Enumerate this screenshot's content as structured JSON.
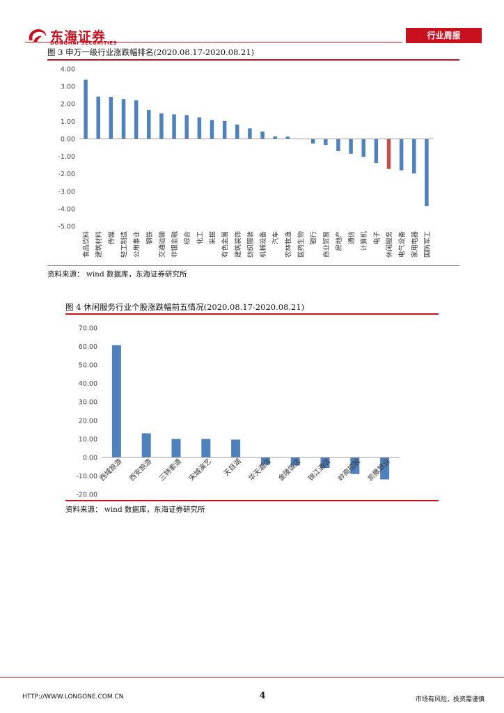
{
  "header": {
    "logo_cn": "东海证券",
    "logo_en": "DONGHAI SECURITIES",
    "tag": "行业周报"
  },
  "figure3": {
    "title": "图 3   申万一级行业涨跌幅排名(2020.08.17-2020.08.21)",
    "source": "资料来源：  wind 数据库，东海证券研究所",
    "chart_data": {
      "type": "bar",
      "categories": [
        "食品饮料",
        "建筑材料",
        "传媒",
        "轻工制造",
        "公用事业",
        "钢铁",
        "交通运输",
        "非银金融",
        "综合",
        "化工",
        "采掘",
        "有色金属",
        "建筑装饰",
        "纺织服装",
        "机械设备",
        "汽车",
        "农林牧渔",
        "医药生物",
        "银行",
        "商业贸易",
        "房地产",
        "通信",
        "计算机",
        "电子",
        "休闲服务",
        "电气设备",
        "家用电器",
        "国防军工"
      ],
      "values": [
        3.38,
        2.42,
        2.4,
        2.28,
        2.2,
        1.65,
        1.46,
        1.4,
        1.36,
        1.23,
        1.08,
        1.02,
        0.82,
        0.6,
        0.42,
        0.14,
        0.13,
        0.02,
        -0.27,
        -0.35,
        -0.7,
        -0.85,
        -1.03,
        -1.38,
        -1.72,
        -1.8,
        -1.98,
        -3.85
      ],
      "highlight_category": "休闲服务",
      "ylim": [
        -5,
        4
      ],
      "yticks": [
        "4.00",
        "3.00",
        "2.00",
        "1.00",
        "0.00",
        "-1.00",
        "-2.00",
        "-3.00",
        "-4.00",
        "-5.00"
      ],
      "colors": {
        "bar": "#4f81bd",
        "highlight": "#c0504d"
      },
      "grid": false
    }
  },
  "figure4": {
    "title": "图 4   休闲服务行业个股涨跌幅前五情况(2020.08.17-2020.08.21)",
    "source": "资料来源：  wind 数据库，东海证券研究所",
    "chart_data": {
      "type": "bar",
      "categories": [
        "西域旅游",
        "西安旅游",
        "三特索道",
        "宋城演艺",
        "天目湖",
        "华天酒店",
        "金陵饭店",
        "锦江酒店",
        "岭南控股",
        "凯撒旅业"
      ],
      "values": [
        60.7,
        13.0,
        10.0,
        10.0,
        9.6,
        -3.9,
        -4.4,
        -5.7,
        -9.0,
        -11.9
      ],
      "ylim": [
        -20,
        70
      ],
      "yticks": [
        "70.00",
        "60.00",
        "50.00",
        "40.00",
        "30.00",
        "20.00",
        "10.00",
        "0.00",
        "-10.00",
        "-20.00"
      ],
      "colors": {
        "bar": "#4f81bd"
      },
      "grid": false
    }
  },
  "footer": {
    "url": "HTTP://WWW.LONGONE.COM.CN",
    "page": "4",
    "disclaimer": "市场有风险，投资需谨慎"
  }
}
